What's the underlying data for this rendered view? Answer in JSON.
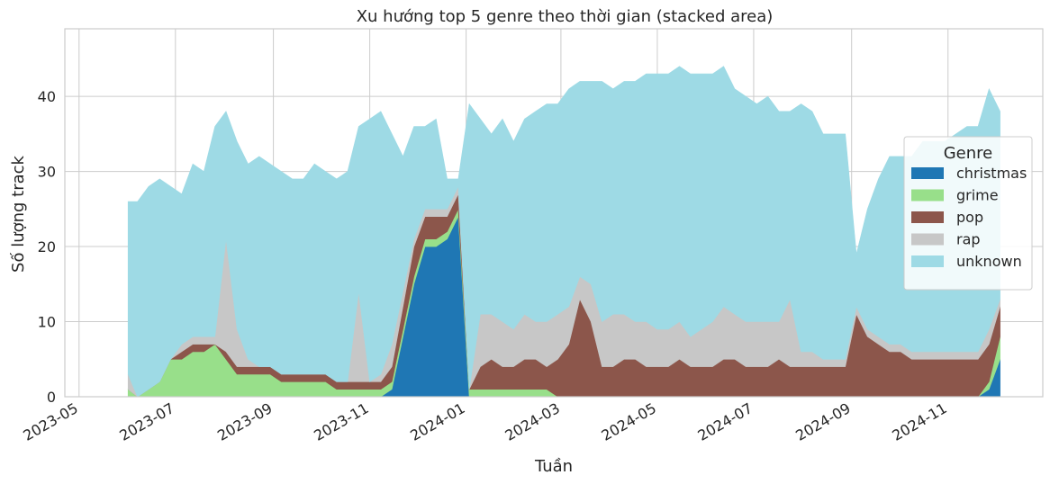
{
  "chart_data": {
    "type": "area",
    "stacked": true,
    "title": "Xu hướng top 5 genre theo thời gian (stacked area)",
    "xlabel": "Tuần",
    "ylabel": "Số lượng track",
    "ylim": [
      0,
      49
    ],
    "xlim": [
      "2023-04-22",
      "2024-12-31"
    ],
    "yticks": [
      0,
      10,
      20,
      30,
      40
    ],
    "xticks": [
      "2023-05",
      "2023-07",
      "2023-09",
      "2023-11",
      "2024-01",
      "2024-03",
      "2024-05",
      "2024-07",
      "2024-09",
      "2024-11"
    ],
    "grid": true,
    "legend": {
      "title": "Genre",
      "position": "right"
    },
    "series_order": [
      "christmas",
      "grime",
      "pop",
      "rap",
      "unknown"
    ],
    "colors": {
      "christmas": "#1f77b4",
      "grime": "#98df8a",
      "pop": "#8c564b",
      "rap": "#c7c7c7",
      "unknown": "#9edae5"
    },
    "x": [
      "2023-06-01",
      "2023-06-07",
      "2023-06-14",
      "2023-06-21",
      "2023-06-28",
      "2023-07-05",
      "2023-07-12",
      "2023-07-19",
      "2023-07-26",
      "2023-08-02",
      "2023-08-09",
      "2023-08-16",
      "2023-08-23",
      "2023-08-30",
      "2023-09-06",
      "2023-09-13",
      "2023-09-20",
      "2023-09-27",
      "2023-10-04",
      "2023-10-11",
      "2023-10-18",
      "2023-10-25",
      "2023-11-01",
      "2023-11-08",
      "2023-11-15",
      "2023-11-22",
      "2023-11-29",
      "2023-12-06",
      "2023-12-13",
      "2023-12-20",
      "2023-12-27",
      "2024-01-03",
      "2024-01-10",
      "2024-01-17",
      "2024-01-24",
      "2024-01-31",
      "2024-02-07",
      "2024-02-14",
      "2024-02-21",
      "2024-02-28",
      "2024-03-06",
      "2024-03-13",
      "2024-03-20",
      "2024-03-27",
      "2024-04-03",
      "2024-04-10",
      "2024-04-17",
      "2024-04-24",
      "2024-05-01",
      "2024-05-08",
      "2024-05-15",
      "2024-05-22",
      "2024-05-29",
      "2024-06-05",
      "2024-06-12",
      "2024-06-19",
      "2024-06-26",
      "2024-07-03",
      "2024-07-10",
      "2024-07-17",
      "2024-07-24",
      "2024-07-31",
      "2024-08-07",
      "2024-08-14",
      "2024-08-21",
      "2024-08-28",
      "2024-09-04",
      "2024-09-11",
      "2024-09-18",
      "2024-09-25",
      "2024-10-02",
      "2024-10-09",
      "2024-10-16",
      "2024-10-23",
      "2024-10-30",
      "2024-11-06",
      "2024-11-13",
      "2024-11-20",
      "2024-11-27",
      "2024-12-04"
    ],
    "series": [
      {
        "name": "christmas",
        "values": [
          0,
          0,
          0,
          0,
          0,
          0,
          0,
          0,
          0,
          0,
          0,
          0,
          0,
          0,
          0,
          0,
          0,
          0,
          0,
          0,
          0,
          0,
          0,
          0,
          1,
          8,
          15,
          20,
          20,
          21,
          24,
          0,
          0,
          0,
          0,
          0,
          0,
          0,
          0,
          0,
          0,
          0,
          0,
          0,
          0,
          0,
          0,
          0,
          0,
          0,
          0,
          0,
          0,
          0,
          0,
          0,
          0,
          0,
          0,
          0,
          0,
          0,
          0,
          0,
          0,
          0,
          0,
          0,
          0,
          0,
          0,
          0,
          0,
          0,
          0,
          0,
          0,
          0,
          1,
          5
        ]
      },
      {
        "name": "grime",
        "values": [
          1,
          0,
          1,
          2,
          5,
          5,
          6,
          6,
          7,
          5,
          3,
          3,
          3,
          3,
          2,
          2,
          2,
          2,
          2,
          1,
          1,
          1,
          1,
          1,
          1,
          1,
          1,
          1,
          1,
          1,
          1,
          1,
          1,
          1,
          1,
          1,
          1,
          1,
          1,
          0,
          0,
          0,
          0,
          0,
          0,
          0,
          0,
          0,
          0,
          0,
          0,
          0,
          0,
          0,
          0,
          0,
          0,
          0,
          0,
          0,
          0,
          0,
          0,
          0,
          0,
          0,
          0,
          0,
          0,
          0,
          0,
          0,
          0,
          0,
          0,
          0,
          0,
          0,
          1,
          3
        ]
      },
      {
        "name": "pop",
        "values": [
          0,
          0,
          0,
          0,
          0,
          1,
          1,
          1,
          0,
          1,
          1,
          1,
          1,
          1,
          1,
          1,
          1,
          1,
          1,
          1,
          1,
          1,
          1,
          1,
          2,
          3,
          4,
          3,
          3,
          2,
          2,
          0,
          3,
          4,
          3,
          3,
          4,
          4,
          3,
          5,
          7,
          13,
          10,
          4,
          4,
          5,
          5,
          4,
          4,
          4,
          5,
          4,
          4,
          4,
          5,
          5,
          4,
          4,
          4,
          5,
          4,
          4,
          4,
          4,
          4,
          4,
          11,
          8,
          7,
          6,
          6,
          5,
          5,
          5,
          5,
          5,
          5,
          5,
          5,
          4
        ]
      },
      {
        "name": "rap",
        "values": [
          2,
          0,
          0,
          0,
          0,
          1,
          1,
          1,
          1,
          15,
          5,
          1,
          0,
          0,
          0,
          0,
          0,
          0,
          0,
          0,
          0,
          12,
          0,
          1,
          3,
          2,
          1,
          1,
          1,
          1,
          1,
          0,
          7,
          6,
          6,
          5,
          6,
          5,
          6,
          6,
          5,
          3,
          5,
          6,
          7,
          6,
          5,
          6,
          5,
          5,
          5,
          4,
          5,
          6,
          7,
          6,
          6,
          6,
          6,
          5,
          9,
          2,
          2,
          1,
          1,
          1,
          1,
          1,
          1,
          1,
          1,
          1,
          1,
          1,
          1,
          1,
          1,
          1,
          2,
          1
        ]
      },
      {
        "name": "unknown",
        "values": [
          23,
          26,
          27,
          27,
          23,
          20,
          23,
          22,
          28,
          17,
          25,
          26,
          28,
          27,
          27,
          26,
          26,
          28,
          27,
          27,
          28,
          22,
          35,
          35,
          28,
          18,
          15,
          11,
          12,
          4,
          1,
          38,
          26,
          24,
          27,
          25,
          26,
          28,
          29,
          28,
          29,
          26,
          27,
          32,
          30,
          31,
          32,
          33,
          34,
          34,
          34,
          35,
          34,
          33,
          32,
          30,
          30,
          29,
          30,
          28,
          25,
          33,
          32,
          30,
          30,
          30,
          7,
          16,
          21,
          25,
          25,
          26,
          28,
          28,
          28,
          29,
          30,
          30,
          32,
          25
        ]
      }
    ]
  }
}
